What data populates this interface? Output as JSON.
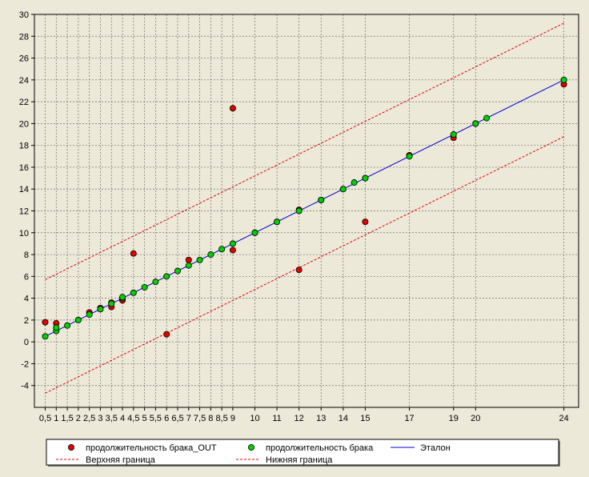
{
  "chart_data": {
    "type": "scatter",
    "x_ticks": [
      0.5,
      1,
      1.5,
      2,
      2.5,
      3,
      3.5,
      4,
      4.5,
      5,
      5.5,
      6,
      6.5,
      7,
      7.5,
      8,
      8.5,
      9,
      10,
      11,
      12,
      13,
      14,
      15,
      17,
      19,
      20,
      24
    ],
    "x_tick_labels": [
      "0,5",
      "1",
      "1,5",
      "2",
      "2,5",
      "3",
      "3,5",
      "4",
      "4,5",
      "5",
      "5,5",
      "6",
      "6,5",
      "7",
      "7,5",
      "8",
      "8,5",
      "9",
      "10",
      "11",
      "12",
      "13",
      "14",
      "15",
      "17",
      "19",
      "20",
      "24"
    ],
    "y_ticks": [
      -4,
      -2,
      0,
      2,
      4,
      6,
      8,
      10,
      12,
      14,
      16,
      18,
      20,
      22,
      24,
      26,
      28,
      30
    ],
    "ylim": [
      -6,
      30
    ],
    "grid": true,
    "legend_position": "bottom",
    "series": [
      {
        "name": "продолжительность брака_OUT",
        "kind": "points",
        "color": "#e00000",
        "points": [
          [
            0.5,
            1.8
          ],
          [
            1,
            1.7
          ],
          [
            2.5,
            2.7
          ],
          [
            3,
            3.1
          ],
          [
            3.5,
            3.2
          ],
          [
            3.5,
            3.6
          ],
          [
            4,
            3.8
          ],
          [
            4.5,
            8.1
          ],
          [
            6,
            0.7
          ],
          [
            7,
            7.5
          ],
          [
            9,
            8.4
          ],
          [
            9,
            21.4
          ],
          [
            10,
            10
          ],
          [
            11,
            11
          ],
          [
            12,
            12.1
          ],
          [
            12,
            6.6
          ],
          [
            13,
            13
          ],
          [
            14,
            14
          ],
          [
            15,
            15
          ],
          [
            15,
            11
          ],
          [
            17,
            17.1
          ],
          [
            19,
            18.7
          ],
          [
            20,
            20
          ],
          [
            24,
            23.6
          ]
        ]
      },
      {
        "name": "продолжительность брака",
        "kind": "points",
        "color": "#00d000",
        "points": [
          [
            0.5,
            0.5
          ],
          [
            1,
            1
          ],
          [
            1,
            1.3
          ],
          [
            1.5,
            1.5
          ],
          [
            2,
            2
          ],
          [
            2.5,
            2.5
          ],
          [
            3,
            3
          ],
          [
            3.5,
            3.5
          ],
          [
            4,
            4
          ],
          [
            4,
            4.1
          ],
          [
            4.5,
            4.5
          ],
          [
            5,
            5
          ],
          [
            5.5,
            5.5
          ],
          [
            6,
            6
          ],
          [
            6.5,
            6.5
          ],
          [
            7,
            7
          ],
          [
            7.5,
            7.5
          ],
          [
            8,
            8
          ],
          [
            8.5,
            8.5
          ],
          [
            9,
            9
          ],
          [
            10,
            10
          ],
          [
            11,
            11
          ],
          [
            12,
            12
          ],
          [
            13,
            13
          ],
          [
            14,
            14
          ],
          [
            14.5,
            14.6
          ],
          [
            15,
            15
          ],
          [
            17,
            17
          ],
          [
            19,
            19
          ],
          [
            20,
            20
          ],
          [
            20.5,
            20.5
          ],
          [
            24,
            24
          ]
        ]
      },
      {
        "name": "Эталон",
        "kind": "line",
        "color": "#0000cc",
        "dash": "solid",
        "points": [
          [
            0.5,
            0.5
          ],
          [
            24,
            24
          ]
        ]
      },
      {
        "name": "Верхняя граница",
        "kind": "line",
        "color": "#e00000",
        "dash": "dashed",
        "points": [
          [
            0.5,
            5.7
          ],
          [
            24,
            29.2
          ]
        ]
      },
      {
        "name": "Нижняя граница",
        "kind": "line",
        "color": "#e00000",
        "dash": "dashed",
        "points": [
          [
            0.5,
            -4.7
          ],
          [
            24,
            18.8
          ]
        ]
      }
    ]
  }
}
